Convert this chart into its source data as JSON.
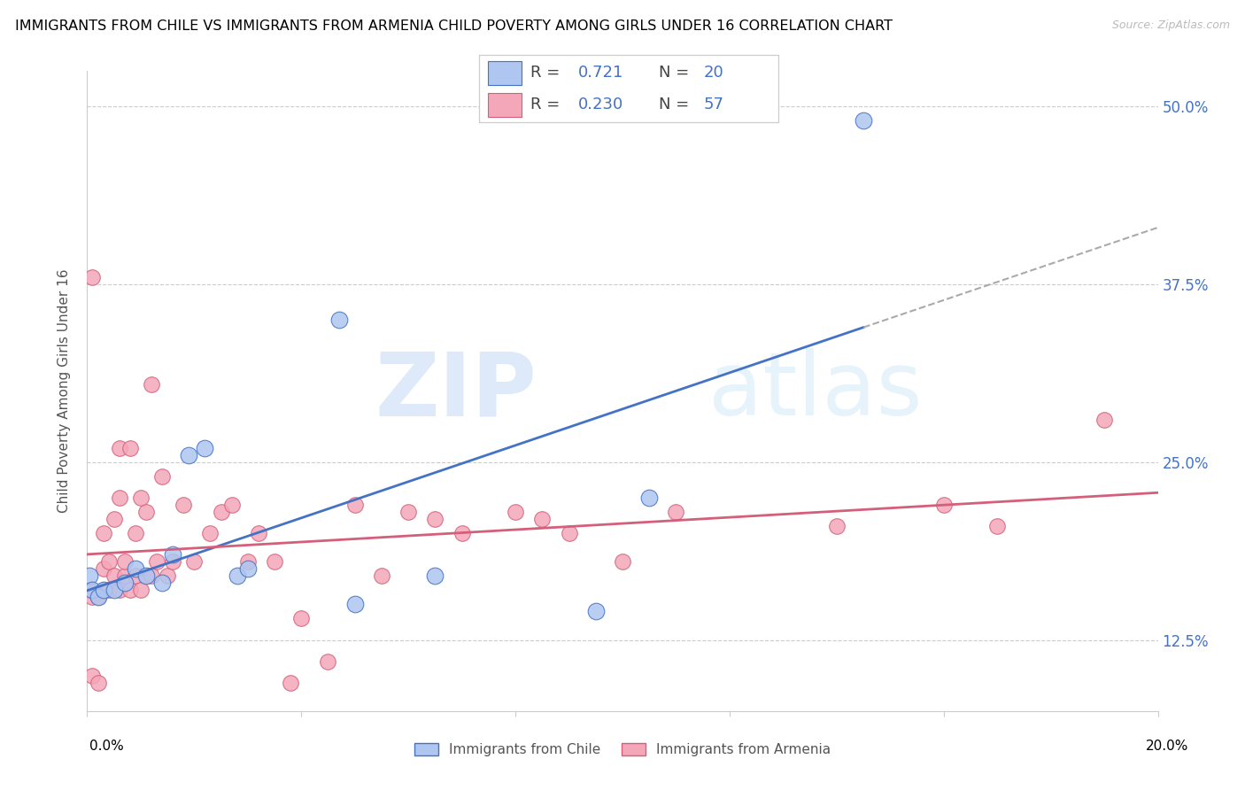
{
  "title": "IMMIGRANTS FROM CHILE VS IMMIGRANTS FROM ARMENIA CHILD POVERTY AMONG GIRLS UNDER 16 CORRELATION CHART",
  "source": "Source: ZipAtlas.com",
  "ylabel": "Child Poverty Among Girls Under 16",
  "ytick_labels": [
    "12.5%",
    "25.0%",
    "37.5%",
    "50.0%"
  ],
  "ytick_values": [
    0.125,
    0.25,
    0.375,
    0.5
  ],
  "xmin": 0.0,
  "xmax": 0.2,
  "ymin": 0.075,
  "ymax": 0.525,
  "chile_color": "#aec6f0",
  "armenia_color": "#f4a7b9",
  "chile_line_color": "#4472c4",
  "armenia_line_color": "#d45f7a",
  "chile_R": 0.721,
  "chile_N": 20,
  "armenia_R": 0.23,
  "armenia_N": 57,
  "chile_points_x": [
    0.0005,
    0.001,
    0.002,
    0.003,
    0.005,
    0.007,
    0.009,
    0.011,
    0.014,
    0.016,
    0.019,
    0.022,
    0.028,
    0.03,
    0.047,
    0.05,
    0.065,
    0.095,
    0.105,
    0.145
  ],
  "chile_points_y": [
    0.17,
    0.16,
    0.155,
    0.16,
    0.16,
    0.165,
    0.175,
    0.17,
    0.165,
    0.185,
    0.255,
    0.26,
    0.17,
    0.175,
    0.35,
    0.15,
    0.17,
    0.145,
    0.225,
    0.49
  ],
  "armenia_points_x": [
    0.0005,
    0.001,
    0.001,
    0.001,
    0.002,
    0.002,
    0.003,
    0.003,
    0.003,
    0.004,
    0.004,
    0.005,
    0.005,
    0.006,
    0.006,
    0.006,
    0.007,
    0.007,
    0.008,
    0.008,
    0.009,
    0.009,
    0.01,
    0.01,
    0.011,
    0.011,
    0.012,
    0.012,
    0.013,
    0.014,
    0.015,
    0.016,
    0.018,
    0.02,
    0.023,
    0.025,
    0.027,
    0.03,
    0.032,
    0.035,
    0.038,
    0.04,
    0.045,
    0.05,
    0.055,
    0.06,
    0.065,
    0.07,
    0.08,
    0.085,
    0.09,
    0.1,
    0.11,
    0.14,
    0.16,
    0.17,
    0.19
  ],
  "armenia_points_y": [
    0.16,
    0.155,
    0.1,
    0.38,
    0.155,
    0.095,
    0.16,
    0.175,
    0.2,
    0.16,
    0.18,
    0.17,
    0.21,
    0.16,
    0.225,
    0.26,
    0.17,
    0.18,
    0.16,
    0.26,
    0.17,
    0.2,
    0.16,
    0.225,
    0.17,
    0.215,
    0.17,
    0.305,
    0.18,
    0.24,
    0.17,
    0.18,
    0.22,
    0.18,
    0.2,
    0.215,
    0.22,
    0.18,
    0.2,
    0.18,
    0.095,
    0.14,
    0.11,
    0.22,
    0.17,
    0.215,
    0.21,
    0.2,
    0.215,
    0.21,
    0.2,
    0.18,
    0.215,
    0.205,
    0.22,
    0.205,
    0.28
  ],
  "watermark_zip": "ZIP",
  "watermark_atlas": "atlas",
  "legend_fontsize": 13,
  "title_fontsize": 11.5
}
